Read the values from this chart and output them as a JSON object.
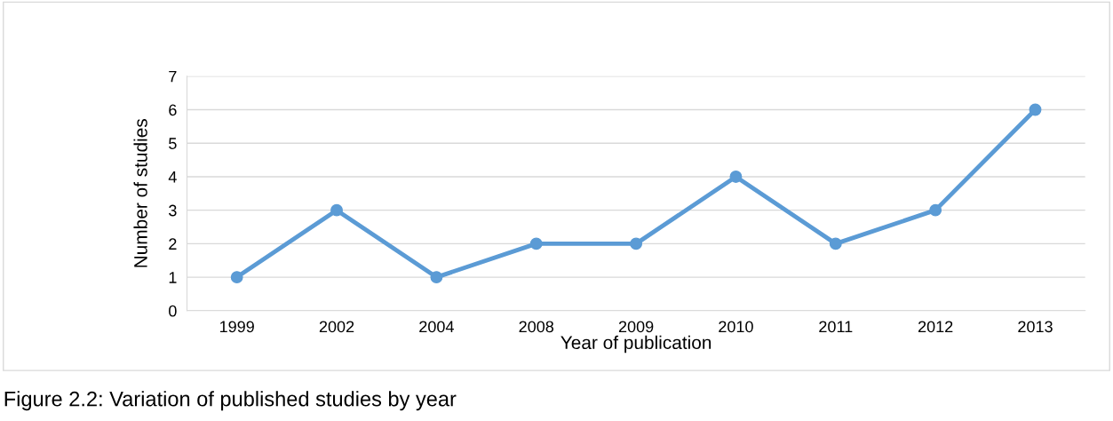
{
  "chart_data": {
    "type": "line",
    "xlabel": "Year of publication",
    "ylabel": "Number of studies",
    "categories": [
      "1999",
      "2002",
      "2004",
      "2008",
      "2009",
      "2010",
      "2011",
      "2012",
      "2013"
    ],
    "series": [
      {
        "color": "#5b9bd5",
        "values": [
          1,
          3,
          1,
          2,
          2,
          4,
          2,
          3,
          6
        ]
      }
    ],
    "ylim": [
      0,
      7
    ],
    "yticks": [
      0,
      1,
      2,
      3,
      4,
      5,
      6,
      7
    ],
    "grid": "y",
    "marker": "circle",
    "line_style": "solid",
    "annotations": [
      "Figure 2.2: Variation of published studies by year"
    ]
  }
}
